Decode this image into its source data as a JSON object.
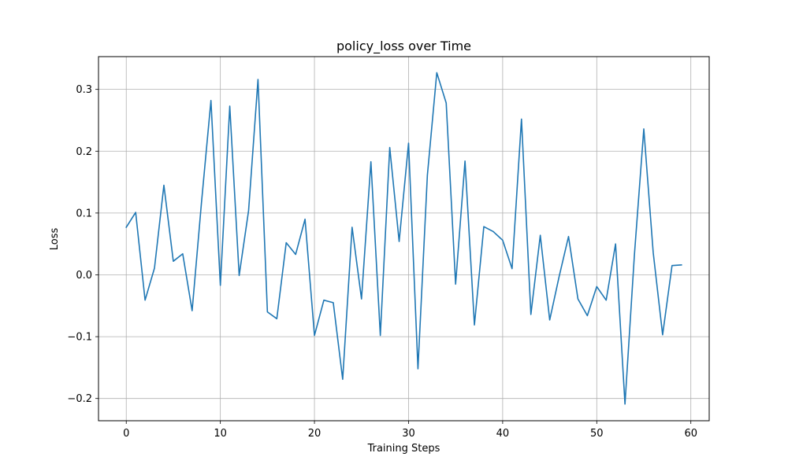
{
  "chart_data": {
    "type": "line",
    "title": "policy_loss over Time",
    "xlabel": "Training Steps",
    "ylabel": "Loss",
    "xlim": [
      -2.95,
      61.95
    ],
    "ylim": [
      -0.236,
      0.353
    ],
    "xticks": [
      0,
      10,
      20,
      30,
      40,
      50,
      60
    ],
    "xtick_labels": [
      "0",
      "10",
      "20",
      "30",
      "40",
      "50",
      "60"
    ],
    "yticks": [
      -0.2,
      -0.1,
      0.0,
      0.1,
      0.2,
      0.3
    ],
    "ytick_labels": [
      "−0.2",
      "−0.1",
      "0.0",
      "0.1",
      "0.2",
      "0.3"
    ],
    "grid": true,
    "line_color": "#1f77b4",
    "series": [
      {
        "x": [
          0,
          1,
          2,
          3,
          4,
          5,
          6,
          7,
          8,
          9,
          10,
          11,
          12,
          13,
          14,
          15,
          16,
          17,
          18,
          19,
          20,
          21,
          22,
          23,
          24,
          25,
          26,
          27,
          28,
          29,
          30,
          31,
          32,
          33,
          34,
          35,
          36,
          37,
          38,
          39,
          40,
          41,
          42,
          43,
          44,
          45,
          46,
          47,
          48,
          49,
          50,
          51,
          52,
          53,
          54,
          55,
          56,
          57,
          58,
          59
        ],
        "values": [
          0.077,
          0.101,
          -0.041,
          0.011,
          0.145,
          0.022,
          0.034,
          -0.058,
          0.118,
          0.282,
          -0.017,
          0.273,
          -0.001,
          0.104,
          0.316,
          -0.06,
          -0.071,
          0.052,
          0.033,
          0.09,
          -0.098,
          -0.041,
          -0.045,
          -0.169,
          0.077,
          -0.039,
          0.183,
          -0.098,
          0.206,
          0.054,
          0.213,
          -0.152,
          0.161,
          0.327,
          0.278,
          -0.015,
          0.184,
          -0.081,
          0.078,
          0.07,
          0.056,
          0.01,
          0.252,
          -0.064,
          0.064,
          -0.073,
          -0.003,
          0.062,
          -0.039,
          -0.066,
          -0.019,
          -0.041,
          0.05,
          -0.209,
          0.032,
          0.236,
          0.036,
          -0.097,
          0.015,
          0.016
        ]
      }
    ]
  }
}
